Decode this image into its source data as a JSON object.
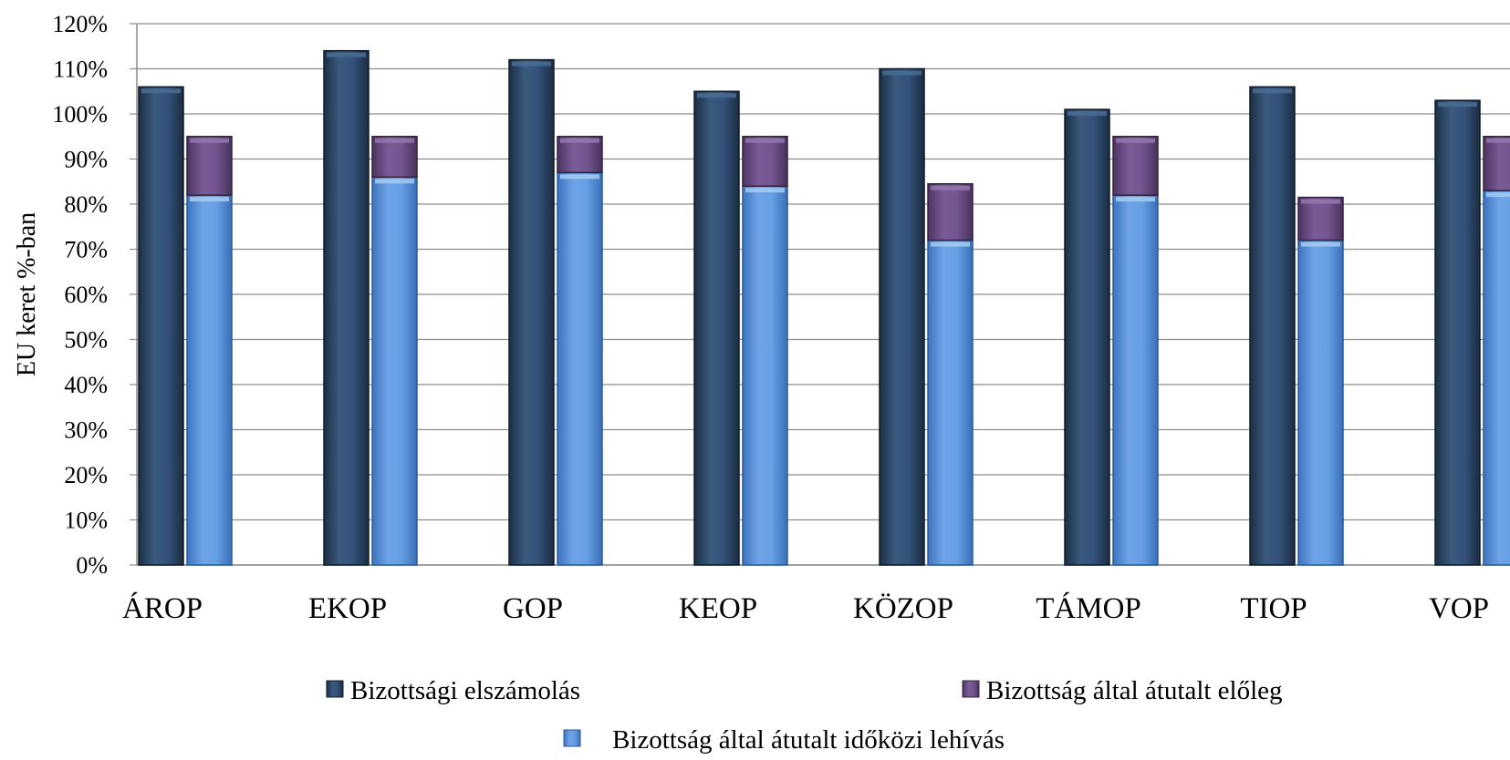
{
  "chart_data": {
    "type": "bar",
    "ylabel": "EU keret %-ban",
    "xlabel": "",
    "ylim": [
      0,
      120
    ],
    "yticks": [
      0,
      10,
      20,
      30,
      40,
      50,
      60,
      70,
      80,
      90,
      100,
      110,
      120
    ],
    "ytick_labels": [
      "0%",
      "10%",
      "20%",
      "30%",
      "40%",
      "50%",
      "60%",
      "70%",
      "80%",
      "90%",
      "100%",
      "110%",
      "120%"
    ],
    "grid": true,
    "legend_position": "bottom",
    "categories": [
      "ÁROP",
      "EKOP",
      "GOP",
      "KEOP",
      "KÖZOP",
      "TÁMOP",
      "TIOP",
      "VOP"
    ],
    "series": [
      {
        "name": "Bizottsági elszámolás",
        "stack": "a",
        "color": "#2e4a6b",
        "values": [
          106,
          114,
          112,
          105,
          110,
          101,
          106,
          103
        ]
      },
      {
        "name": "Bizottság által átutalt időközi lehívás",
        "stack": "b",
        "color": "#5f94d8",
        "values": [
          82,
          86,
          87,
          84,
          72,
          82,
          72,
          83
        ]
      },
      {
        "name": "Bizottság által átutalt előleg",
        "stack": "b",
        "color": "#6b4d85",
        "values": [
          13,
          9,
          8,
          11,
          12.5,
          13,
          9.5,
          12
        ]
      }
    ]
  }
}
